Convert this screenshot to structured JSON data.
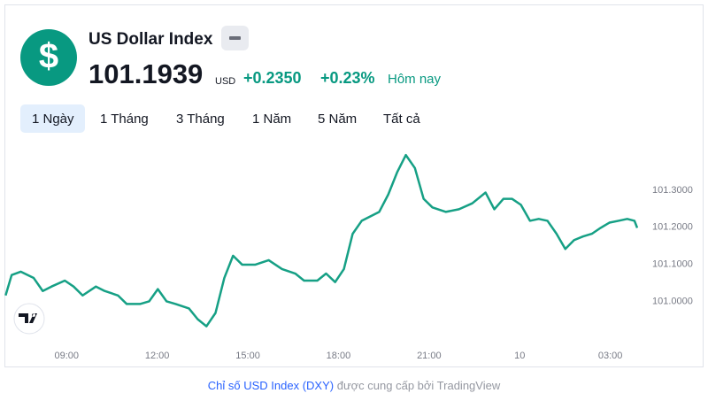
{
  "widget": {
    "symbol_icon": "$",
    "name": "US Dollar Index",
    "price": "101.1939",
    "currency": "USD",
    "change": "+0.2350",
    "change_percent": "+0.23%",
    "period_text": "Hôm nay",
    "tabs": [
      "1 Ngày",
      "1 Tháng",
      "3 Tháng",
      "1 Năm",
      "5 Năm",
      "Tất cả"
    ],
    "active_tab": 0,
    "footer_link": "Chỉ số USD Index (DXY)",
    "footer_text": "được cung cấp bởi TradingView"
  },
  "chart_data": {
    "type": "line",
    "color": "#16a085",
    "grid": false,
    "x": [
      6.98,
      7.18,
      7.48,
      7.91,
      8.21,
      8.5,
      8.94,
      9.23,
      9.53,
      9.97,
      10.26,
      10.7,
      10.99,
      11.43,
      11.73,
      12.02,
      12.31,
      12.61,
      13.05,
      13.34,
      13.63,
      13.93,
      14.22,
      14.51,
      14.81,
      15.25,
      15.69,
      16.13,
      16.57,
      16.86,
      17.3,
      17.59,
      17.89,
      18.18,
      18.47,
      18.77,
      19.06,
      19.35,
      19.65,
      19.94,
      20.23,
      20.53,
      20.82,
      21.11,
      21.55,
      21.99,
      22.43,
      22.87,
      23.16,
      23.46,
      23.75,
      24.04,
      24.34,
      24.63,
      24.92,
      25.22,
      25.51,
      25.8,
      26.1,
      26.39,
      26.68,
      26.97,
      27.27,
      27.56,
      27.8,
      27.89
    ],
    "values": [
      101.014,
      101.069,
      101.078,
      101.061,
      101.026,
      101.038,
      101.054,
      101.038,
      101.014,
      101.038,
      101.026,
      101.014,
      100.991,
      100.991,
      100.998,
      101.031,
      100.998,
      100.991,
      100.979,
      100.95,
      100.931,
      100.967,
      101.061,
      101.121,
      101.097,
      101.097,
      101.109,
      101.085,
      101.073,
      101.054,
      101.054,
      101.073,
      101.05,
      101.085,
      101.18,
      101.215,
      101.227,
      101.239,
      101.286,
      101.345,
      101.392,
      101.357,
      101.274,
      101.251,
      101.239,
      101.246,
      101.262,
      101.291,
      101.246,
      101.274,
      101.274,
      101.258,
      101.215,
      101.22,
      101.215,
      101.18,
      101.139,
      101.163,
      101.173,
      101.18,
      101.196,
      101.21,
      101.215,
      101.22,
      101.215,
      101.196
    ],
    "xlim": [
      6.97,
      30
    ],
    "ylim": [
      100.88,
      101.44
    ],
    "xticks": [
      {
        "value": 9,
        "label": "09:00"
      },
      {
        "value": 12,
        "label": "12:00"
      },
      {
        "value": 15,
        "label": "15:00"
      },
      {
        "value": 18,
        "label": "18:00"
      },
      {
        "value": 21,
        "label": "21:00"
      },
      {
        "value": 24,
        "label": "10"
      },
      {
        "value": 27,
        "label": "03:00"
      }
    ],
    "yticks": [
      {
        "value": 101.0,
        "label": "101.0000"
      },
      {
        "value": 101.1,
        "label": "101.1000"
      },
      {
        "value": 101.2,
        "label": "101.2000"
      },
      {
        "value": 101.3,
        "label": "101.3000"
      }
    ]
  }
}
